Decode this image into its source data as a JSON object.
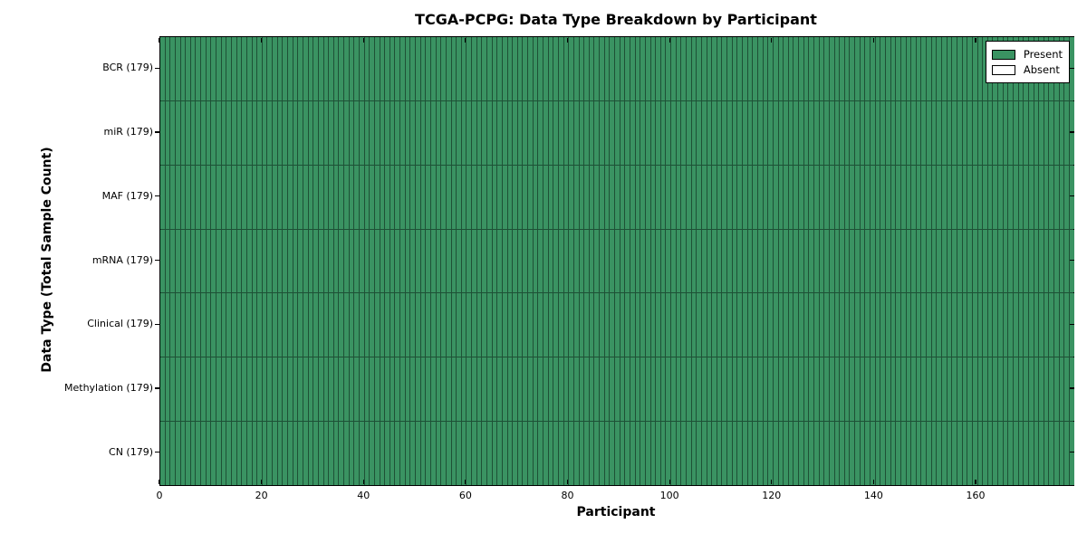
{
  "chart_data": {
    "type": "heatmap",
    "title": "TCGA-PCPG: Data Type Breakdown by Participant",
    "xlabel": "Participant",
    "ylabel": "Data Type (Total Sample Count)",
    "participants": 179,
    "xlim": [
      0,
      179
    ],
    "x_ticks": [
      0,
      20,
      40,
      60,
      80,
      100,
      120,
      140,
      160
    ],
    "rows": [
      {
        "label": "BCR (179)",
        "name": "BCR",
        "total": 179,
        "present": 179,
        "absent": 0
      },
      {
        "label": "miR (179)",
        "name": "miR",
        "total": 179,
        "present": 179,
        "absent": 0
      },
      {
        "label": "MAF (179)",
        "name": "MAF",
        "total": 179,
        "present": 179,
        "absent": 0
      },
      {
        "label": "mRNA (179)",
        "name": "mRNA",
        "total": 179,
        "present": 179,
        "absent": 0
      },
      {
        "label": "Clinical (179)",
        "name": "Clinical",
        "total": 179,
        "present": 179,
        "absent": 0
      },
      {
        "label": "Methylation (179)",
        "name": "Methylation",
        "total": 179,
        "present": 179,
        "absent": 0
      },
      {
        "label": "CN (179)",
        "name": "CN",
        "total": 179,
        "present": 179,
        "absent": 0
      }
    ],
    "legend": {
      "position": "upper right",
      "items": [
        {
          "label": "Present",
          "color": "#3a9362"
        },
        {
          "label": "Absent",
          "color": "#ffffff"
        }
      ]
    },
    "colors": {
      "present": "#3a9362",
      "absent": "#ffffff",
      "cell_edge": "#1e5136",
      "spine": "#000000",
      "background": "#ffffff"
    },
    "grid": true
  }
}
